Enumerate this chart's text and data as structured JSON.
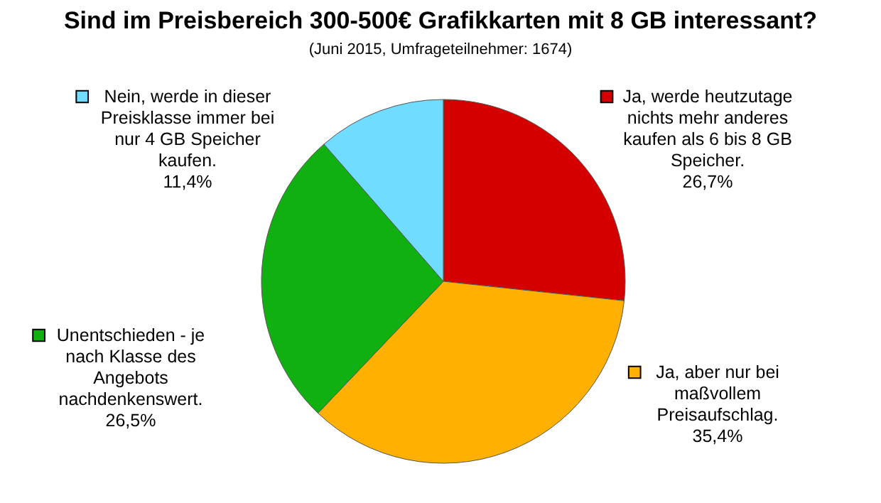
{
  "chart_data": {
    "type": "pie",
    "title": "Sind im Preisbereich 300-500€ Grafikkarten mit 8 GB interessant?",
    "subtitle": "(Juni 2015, Umfrageteilnehmer: 1674)",
    "categories": [
      "Ja, werde heutzutage nichts mehr anderes kaufen als 6 bis 8 GB Speicher.",
      "Ja, aber nur bei maßvollem Preisaufschlag.",
      "Unentschieden - je nach Klasse des Angebots nachdenkenswert.",
      "Nein, werde in dieser Preisklasse immer bei nur 4 GB Speicher kaufen."
    ],
    "values": [
      26.7,
      35.4,
      26.5,
      11.4
    ],
    "value_labels": [
      "26,7%",
      "35,4%",
      "26,5%",
      "11,4%"
    ],
    "colors": [
      "#d40000",
      "#ffb000",
      "#10b010",
      "#70dcff"
    ],
    "legend": "top left"
  }
}
